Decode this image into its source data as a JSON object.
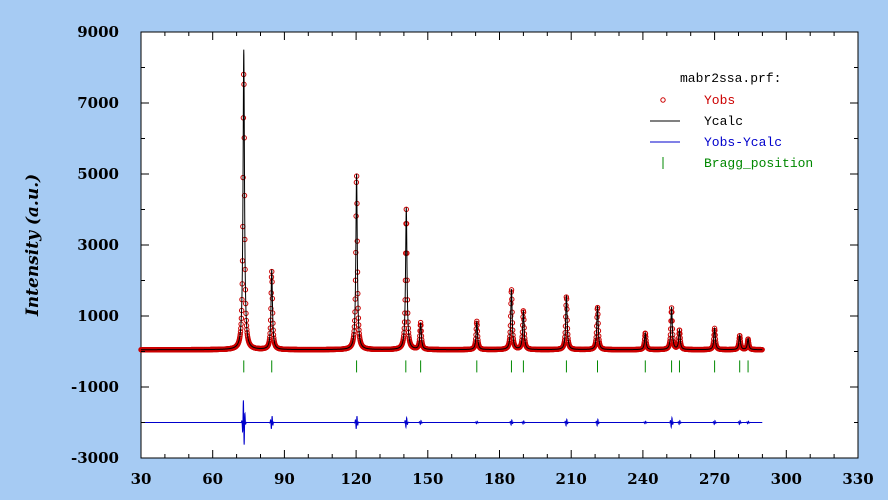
{
  "chart_data": {
    "type": "line",
    "ylabel": "Intensity (a.u.)",
    "xlabel": "",
    "xlim": [
      30,
      330
    ],
    "ylim": [
      -3000,
      9000
    ],
    "x_ticks": [
      30,
      60,
      90,
      120,
      150,
      180,
      210,
      240,
      270,
      300,
      330
    ],
    "y_ticks": [
      -3000,
      -1000,
      1000,
      3000,
      5000,
      7000,
      9000
    ],
    "x_tick_labels": [
      "30",
      "60",
      "90",
      "120",
      "150",
      "180",
      "210",
      "240",
      "270",
      "300",
      "330"
    ],
    "y_tick_labels": [
      "-3000",
      "-1000",
      "1000",
      "3000",
      "5000",
      "7000",
      "9000"
    ],
    "data_range_x": [
      30,
      290
    ],
    "background": 50,
    "diff_offset": -2000,
    "bragg_y": -420,
    "legend": {
      "title": "mabr2ssa.prf:",
      "placement": "top-right",
      "entries": [
        {
          "label": "Yobs",
          "color": "#cc0000",
          "marker": "circle"
        },
        {
          "label": "Ycalc",
          "color": "#000000",
          "marker": "line"
        },
        {
          "label": "Yobs-Ycalc",
          "color": "#0000cc",
          "marker": "line"
        },
        {
          "label": "Bragg_position",
          "color": "#008800",
          "marker": "tick"
        }
      ]
    },
    "peaks": [
      {
        "x": 73.0,
        "calc": 8500,
        "obs": 7900,
        "diff": -700
      },
      {
        "x": 84.7,
        "calc": 2300,
        "obs": 2250,
        "diff": 200
      },
      {
        "x": 120.2,
        "calc": 5000,
        "obs": 5000,
        "diff": 200
      },
      {
        "x": 141.0,
        "calc": 4050,
        "obs": 4000,
        "diff": 150
      },
      {
        "x": 147.0,
        "calc": 800,
        "obs": 800,
        "diff": 60
      },
      {
        "x": 170.5,
        "calc": 850,
        "obs": 850,
        "diff": 40
      },
      {
        "x": 185.0,
        "calc": 1750,
        "obs": 1750,
        "diff": 80
      },
      {
        "x": 190.0,
        "calc": 1150,
        "obs": 1150,
        "diff": 50
      },
      {
        "x": 208.0,
        "calc": 1580,
        "obs": 1550,
        "diff": 100
      },
      {
        "x": 221.0,
        "calc": 1280,
        "obs": 1250,
        "diff": 100
      },
      {
        "x": 241.0,
        "calc": 520,
        "obs": 520,
        "diff": 40
      },
      {
        "x": 252.0,
        "calc": 1250,
        "obs": 1220,
        "diff": 150
      },
      {
        "x": 255.3,
        "calc": 600,
        "obs": 600,
        "diff": 60
      },
      {
        "x": 270.0,
        "calc": 650,
        "obs": 650,
        "diff": 60
      },
      {
        "x": 280.5,
        "calc": 460,
        "obs": 450,
        "diff": 60
      },
      {
        "x": 284.0,
        "calc": 360,
        "obs": 350,
        "diff": 40
      }
    ],
    "bragg_positions": [
      73.0,
      84.7,
      120.2,
      140.8,
      147.0,
      170.5,
      185.0,
      190.0,
      208.0,
      221.0,
      241.0,
      252.0,
      255.3,
      270.0,
      280.5,
      284.0
    ]
  }
}
